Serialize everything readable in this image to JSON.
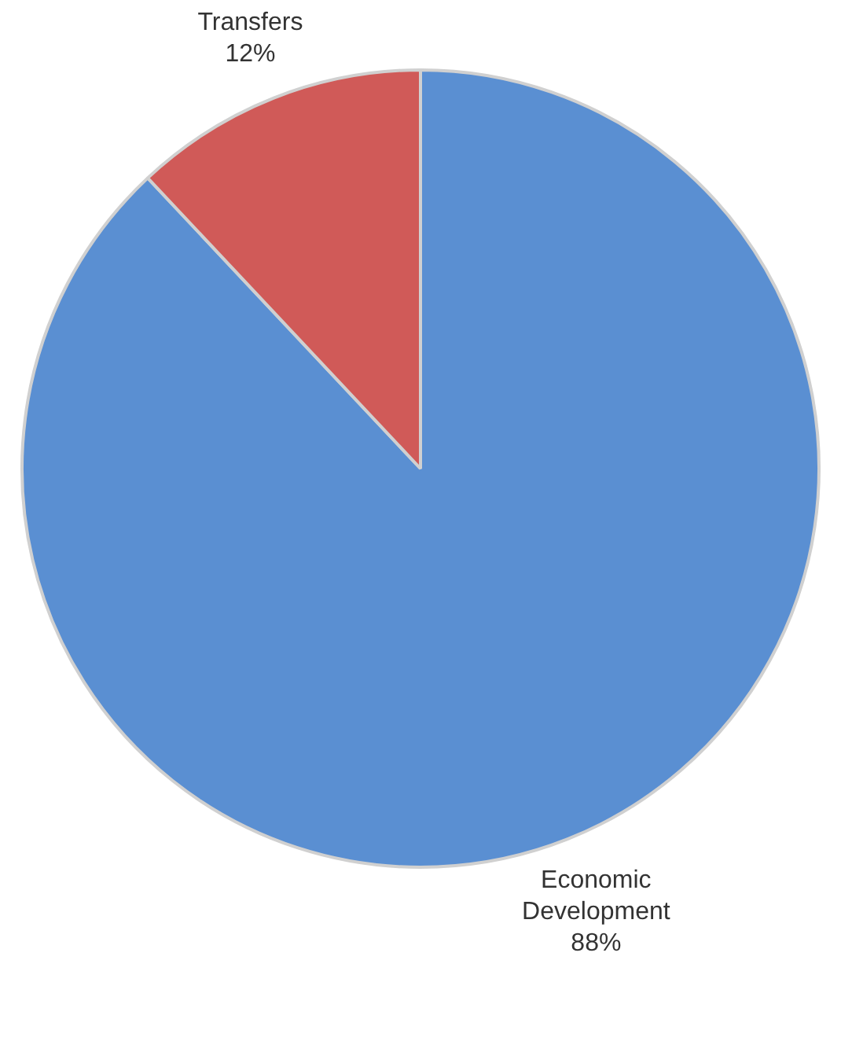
{
  "chart_data": {
    "type": "pie",
    "categories": [
      "Economic Development",
      "Transfers"
    ],
    "values": [
      88,
      12
    ],
    "colors": [
      "#5a8fd2",
      "#d05a58"
    ],
    "value_labels": [
      "88%",
      "12%"
    ],
    "legend": false
  }
}
